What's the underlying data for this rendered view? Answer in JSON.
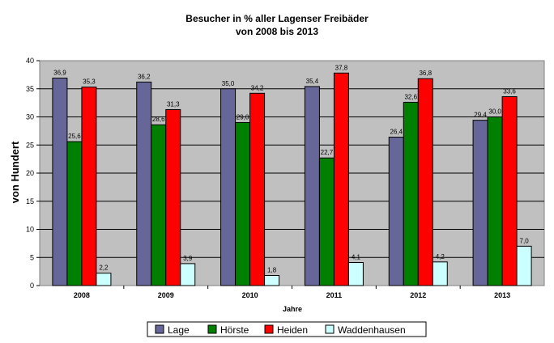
{
  "chart_data": {
    "type": "bar",
    "title": "Besucher in % aller Lagenser Freibäder",
    "subtitle": "von 2008 bis 2013",
    "xlabel": "Jahre",
    "ylabel": "von Hundert",
    "categories": [
      "2008",
      "2009",
      "2010",
      "2011",
      "2012",
      "2013"
    ],
    "ylim": [
      0,
      40
    ],
    "yticks": [
      "0",
      "5",
      "10",
      "15",
      "20",
      "25",
      "30",
      "35",
      "40"
    ],
    "grid": true,
    "legend_position": "bottom",
    "series": [
      {
        "name": "Lage",
        "color": "#666699",
        "values": [
          36.9,
          36.2,
          35.0,
          35.4,
          26.4,
          29.4
        ],
        "labels": [
          "36,9",
          "36,2",
          "35,0",
          "35,4",
          "26,4",
          "29,4"
        ]
      },
      {
        "name": "Hörste",
        "color": "#008000",
        "values": [
          25.6,
          28.6,
          29.0,
          22.7,
          32.6,
          30.0
        ],
        "labels": [
          "25,6",
          "28,6",
          "29,0",
          "22,7",
          "32,6",
          "30,0"
        ]
      },
      {
        "name": "Heiden",
        "color": "#ff0000",
        "values": [
          35.3,
          31.3,
          34.2,
          37.8,
          36.8,
          33.6
        ],
        "labels": [
          "35,3",
          "31,3",
          "34,2",
          "37,8",
          "36,8",
          "33,6"
        ]
      },
      {
        "name": "Waddenhausen",
        "color": "#ccffff",
        "values": [
          2.2,
          3.9,
          1.8,
          4.1,
          4.2,
          7.0
        ],
        "labels": [
          "2,2",
          "3,9",
          "1,8",
          "4,1",
          "4,2",
          "7,0"
        ]
      }
    ],
    "plot_background": "#c0c0c0"
  }
}
